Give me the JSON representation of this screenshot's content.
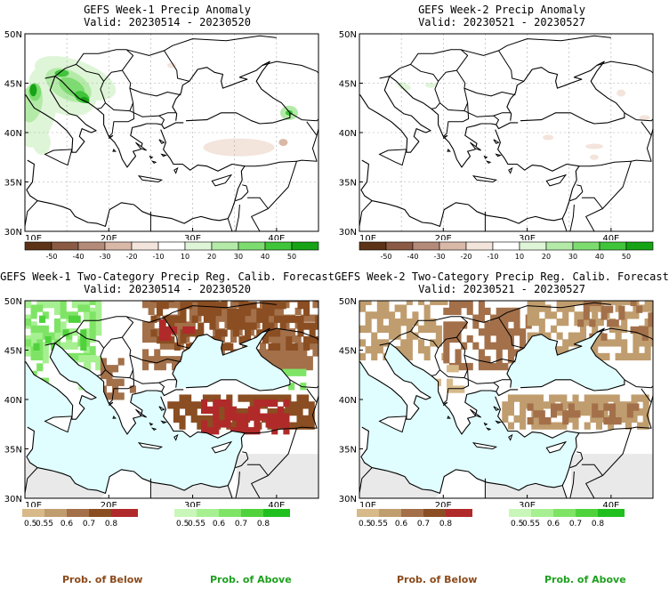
{
  "colors": {
    "dry_anom": [
      "#5c3317",
      "#8a5a44",
      "#b48a78",
      "#d9b8a8",
      "#f3e4dc"
    ],
    "wet_anom": [
      "#dff5d8",
      "#b4eaa8",
      "#7ddc70",
      "#3fc43a",
      "#16a316"
    ],
    "below_prob": [
      "#d7b98a",
      "#c09d6e",
      "#a3704a",
      "#8a4e22",
      "#b02a2a"
    ],
    "above_prob": [
      "#c9f7b9",
      "#a6f091",
      "#7fe466",
      "#50d23d",
      "#1fbf1f"
    ],
    "sea": "#e0feff",
    "nodata": "#e9e9e9",
    "prob_below_label": "#8b4a1c",
    "prob_above_label": "#1fa01f"
  },
  "axes": {
    "y_ticks": [
      "50N",
      "45N",
      "40N",
      "35N",
      "30N"
    ],
    "x_ticks": [
      "10E",
      "20E",
      "30E",
      "40E"
    ]
  },
  "panels": [
    {
      "title": "GEFS Week-1 Precip Anomaly",
      "valid": "Valid: 20230514 - 20230520"
    },
    {
      "title": "GEFS Week-2 Precip Anomaly",
      "valid": "Valid: 20230521 - 20230527"
    },
    {
      "title": "GEFS Week-1 Two-Category Precip Reg. Calib. Forecast",
      "valid": "Valid: 20230514 - 20230520"
    },
    {
      "title": "GEFS Week-2 Two-Category Precip Reg. Calib. Forecast",
      "valid": "Valid: 20230521 - 20230527"
    }
  ],
  "anomaly_legend": {
    "labels": [
      "-50",
      "-40",
      "-30",
      "-20",
      "-10",
      "10",
      "20",
      "30",
      "40",
      "50"
    ]
  },
  "prob_legend": {
    "below_labels": [
      "0.5",
      "0.55",
      "0.6",
      "0.7",
      "0.8"
    ],
    "above_labels": [
      "0.5",
      "0.55",
      "0.6",
      "0.7",
      "0.8"
    ],
    "below_title": "Prob. of Below",
    "above_title": "Prob. of Above"
  }
}
